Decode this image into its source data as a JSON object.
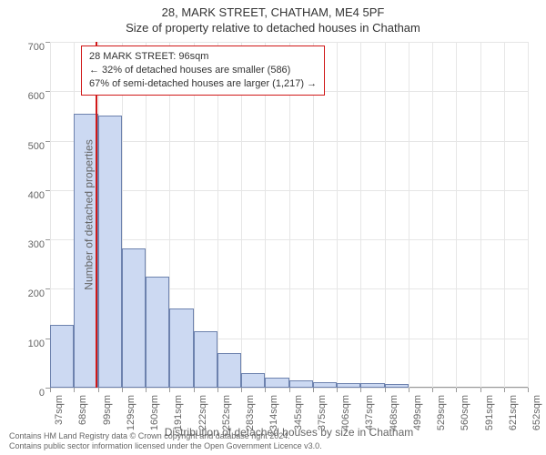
{
  "title_line1": "28, MARK STREET, CHATHAM, ME4 5PF",
  "title_line2": "Size of property relative to detached houses in Chatham",
  "y_label": "Number of detached properties",
  "x_label": "Distribution of detached houses by size in Chatham",
  "footer_line1": "Contains HM Land Registry data © Crown copyright and database right 2024.",
  "footer_line2": "Contains public sector information licensed under the Open Government Licence v3.0.",
  "info_box": {
    "line1": "28 MARK STREET: 96sqm",
    "line2": "← 32% of detached houses are smaller (586)",
    "line3": "67% of semi-detached houses are larger (1,217) →"
  },
  "chart": {
    "type": "histogram",
    "ylim": [
      0,
      700
    ],
    "ytick_step": 100,
    "yticks": [
      0,
      100,
      200,
      300,
      400,
      500,
      600,
      700
    ],
    "xticks": [
      "37sqm",
      "68sqm",
      "99sqm",
      "129sqm",
      "160sqm",
      "191sqm",
      "222sqm",
      "252sqm",
      "283sqm",
      "314sqm",
      "345sqm",
      "375sqm",
      "406sqm",
      "437sqm",
      "468sqm",
      "499sqm",
      "529sqm",
      "560sqm",
      "591sqm",
      "621sqm",
      "652sqm"
    ],
    "bars": [
      128,
      555,
      550,
      282,
      225,
      160,
      115,
      70,
      30,
      20,
      15,
      12,
      10,
      10,
      7,
      0,
      0,
      0,
      0,
      0
    ],
    "bar_color": "#ccd9f2",
    "bar_border_color": "#6d82ae",
    "background_color": "#ffffff",
    "grid_color": "#e6e6e6",
    "axis_color": "#999999",
    "marker_value": 96,
    "marker_color": "#d01818",
    "x_domain": [
      37,
      652
    ],
    "label_fontsize": 12,
    "tick_fontsize": 11,
    "title_fontsize": 13
  }
}
